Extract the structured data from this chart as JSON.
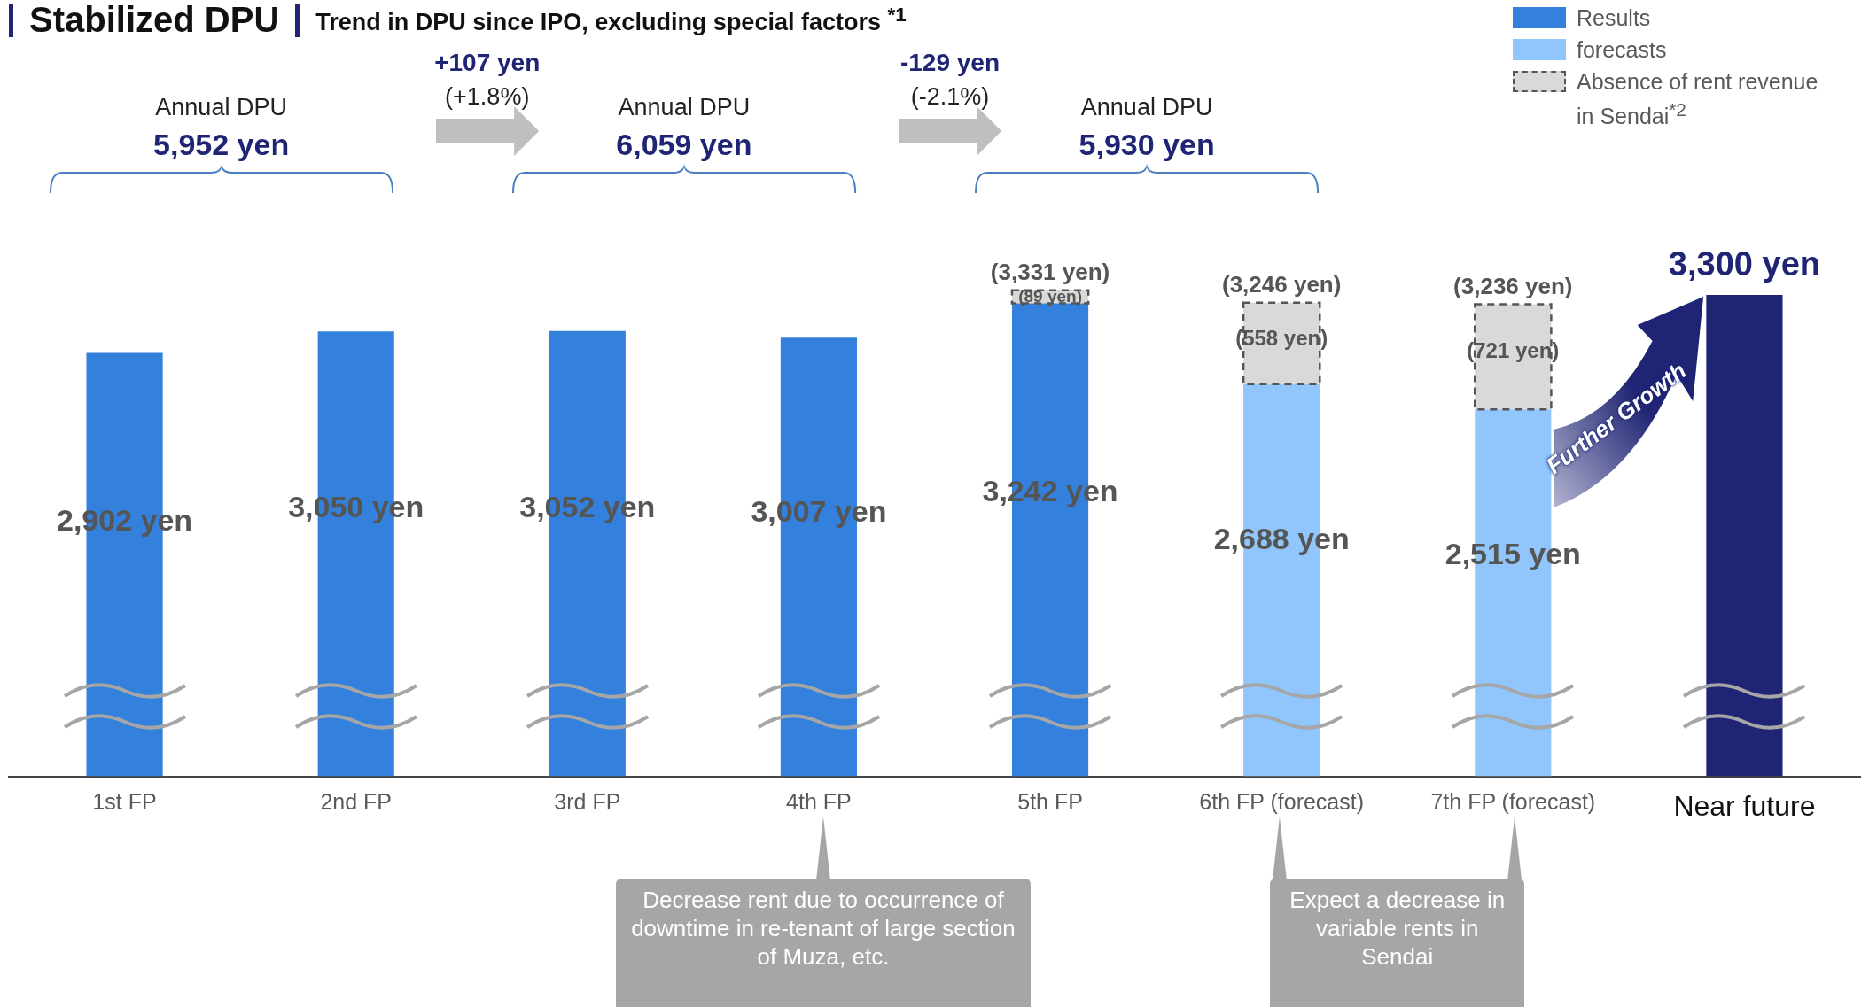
{
  "chart_data": {
    "type": "bar",
    "title": "Stabilized DPU",
    "subtitle": "Trend in DPU since IPO, excluding special factors $^{*1}$",
    "categories": [
      "1st FP",
      "2nd FP",
      "3rd FP",
      "4th FP",
      "5th FP",
      "6th FP (forecast)",
      "7th FP (forecast)",
      "Near future"
    ],
    "stacked": true,
    "tick_labels": "x",
    "grid": false,
    "legend": "top right",
    "series": [
      {
        "name": "Results",
        "color": "#3380dd",
        "values": [
          2902,
          3050,
          3052,
          3007,
          3242,
          null,
          null,
          null
        ],
        "value_labels": [
          "2,902 yen",
          "3,050 yen",
          "3,052 yen",
          "3,007 yen",
          "3,242 yen",
          null,
          null,
          null
        ]
      },
      {
        "name": "forecasts",
        "color": "#90c6fb",
        "values": [
          null,
          null,
          null,
          null,
          null,
          2688,
          2515,
          null
        ],
        "value_labels": [
          null,
          null,
          null,
          null,
          null,
          "2,688 yen",
          "2,515 yen",
          null
        ]
      },
      {
        "name": "Absence of rent revenue in Sendai$^{*2}$",
        "color": "#d9d9d9",
        "line_style": "dashed",
        "values": [
          null,
          null,
          null,
          null,
          89,
          558,
          721,
          null
        ],
        "value_labels": [
          null,
          null,
          null,
          null,
          "(89 yen)",
          "(558 yen)",
          "(721 yen)",
          null
        ]
      },
      {
        "color": "#1f2574",
        "values": [
          null,
          null,
          null,
          null,
          null,
          null,
          null,
          3300
        ]
      }
    ],
    "totals": [
      null,
      null,
      null,
      null,
      "(3,331 yen)",
      "(3,246 yen)",
      "(3,236 yen)",
      null
    ],
    "annotations": [
      "Annual DPU\n5,952 yen",
      "Annual DPU\n6,059 yen",
      "Annual DPU\n5,930 yen",
      "+107 yen\n(+1.8%)",
      "-129 yen\n(-2.1%)",
      "Further Growth",
      "Decrease rent due to occurrence of downtime in re-tenant of large section of Muza, etc.",
      "Expect a decrease in variable rents in Sendai",
      {
        "text": "3,300 yen",
        "x": "Near future",
        "y": 3300
      }
    ]
  }
}
